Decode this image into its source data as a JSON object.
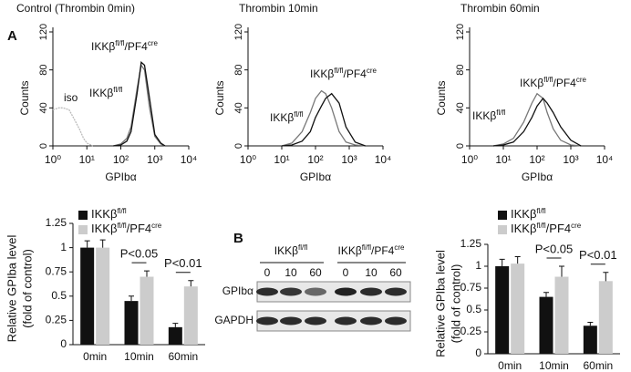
{
  "panel_labels": [
    "A",
    "B"
  ],
  "chart_data": [
    {
      "type": "histogram-line",
      "title": "Control (Thrombin 0min)",
      "x_label": "GPIbα",
      "y_label": "Counts",
      "log_x": true,
      "xlim": [
        1,
        10000
      ],
      "xticks": [
        {
          "value": 1,
          "label": "10⁰"
        },
        {
          "value": 10,
          "label": "10¹"
        },
        {
          "value": 100,
          "label": "10²"
        },
        {
          "value": 1000,
          "label": "10³"
        },
        {
          "value": 10000,
          "label": "10⁴"
        }
      ],
      "ylim": [
        0,
        120
      ],
      "yticks": [
        0,
        40,
        80,
        120
      ],
      "series": [
        {
          "name": [
            {
              "t": "iso"
            }
          ],
          "color": "#bbbbbb",
          "x": [
            1,
            1.5,
            2,
            3,
            4,
            6,
            8,
            10,
            15
          ],
          "values": [
            38,
            40,
            40,
            38,
            30,
            18,
            8,
            3,
            0
          ]
        },
        {
          "name": [
            {
              "t": "IKKβ"
            },
            {
              "t": "fl/fl",
              "sup": true
            }
          ],
          "color": "#777777",
          "x": [
            60,
            100,
            150,
            200,
            300,
            400,
            500,
            700,
            1000,
            1500,
            2000
          ],
          "values": [
            0,
            2,
            8,
            20,
            60,
            85,
            80,
            40,
            10,
            2,
            0
          ]
        },
        {
          "name": [
            {
              "t": "IKKβ"
            },
            {
              "t": "fl/fl",
              "sup": true
            },
            {
              "t": "/PF4"
            },
            {
              "t": "cre",
              "sup": true
            }
          ],
          "color": "#111111",
          "x": [
            60,
            100,
            150,
            200,
            300,
            400,
            500,
            700,
            1000,
            1500,
            2000
          ],
          "values": [
            0,
            1,
            5,
            15,
            55,
            88,
            85,
            50,
            12,
            3,
            0
          ]
        }
      ]
    },
    {
      "type": "histogram-line",
      "title": "Thrombin 10min",
      "x_label": "GPIbα",
      "y_label": "Counts",
      "log_x": true,
      "xlim": [
        1,
        10000
      ],
      "xticks": [
        {
          "value": 1,
          "label": "10⁰"
        },
        {
          "value": 10,
          "label": "10¹"
        },
        {
          "value": 100,
          "label": "10²"
        },
        {
          "value": 1000,
          "label": "10³"
        },
        {
          "value": 10000,
          "label": "10⁴"
        }
      ],
      "ylim": [
        0,
        120
      ],
      "yticks": [
        0,
        40,
        80,
        120
      ],
      "series": [
        {
          "name": [
            {
              "t": "IKKβ"
            },
            {
              "t": "fl/fl",
              "sup": true
            }
          ],
          "color": "#777777",
          "x": [
            10,
            20,
            40,
            70,
            100,
            150,
            200,
            300,
            500,
            800,
            1500,
            3000
          ],
          "values": [
            0,
            3,
            15,
            35,
            50,
            58,
            55,
            40,
            15,
            4,
            1,
            0
          ]
        },
        {
          "name": [
            {
              "t": "IKKβ"
            },
            {
              "t": "fl/fl",
              "sup": true
            },
            {
              "t": "/PF4"
            },
            {
              "t": "cre",
              "sup": true
            }
          ],
          "color": "#111111",
          "x": [
            10,
            20,
            40,
            70,
            100,
            150,
            200,
            300,
            500,
            800,
            1500,
            3000
          ],
          "values": [
            0,
            1,
            5,
            15,
            30,
            42,
            50,
            55,
            45,
            20,
            4,
            0
          ]
        }
      ]
    },
    {
      "type": "histogram-line",
      "title": "Thrombin 60min",
      "x_label": "GPIbα",
      "y_label": "Counts",
      "log_x": true,
      "xlim": [
        1,
        10000
      ],
      "xticks": [
        {
          "value": 1,
          "label": "10⁰"
        },
        {
          "value": 10,
          "label": "10¹"
        },
        {
          "value": 100,
          "label": "10²"
        },
        {
          "value": 1000,
          "label": "10³"
        },
        {
          "value": 10000,
          "label": "10⁴"
        }
      ],
      "ylim": [
        0,
        120
      ],
      "yticks": [
        0,
        40,
        80,
        120
      ],
      "series": [
        {
          "name": [
            {
              "t": "IKKβ"
            },
            {
              "t": "fl/fl",
              "sup": true
            }
          ],
          "color": "#777777",
          "x": [
            5,
            10,
            20,
            40,
            70,
            100,
            150,
            200,
            300,
            500,
            1000,
            2000
          ],
          "values": [
            0,
            2,
            8,
            25,
            45,
            55,
            50,
            35,
            18,
            6,
            1,
            0
          ]
        },
        {
          "name": [
            {
              "t": "IKKβ"
            },
            {
              "t": "fl/fl",
              "sup": true
            },
            {
              "t": "/PF4"
            },
            {
              "t": "cre",
              "sup": true
            }
          ],
          "color": "#111111",
          "x": [
            5,
            10,
            20,
            40,
            70,
            100,
            150,
            200,
            300,
            500,
            1000,
            2000
          ],
          "values": [
            0,
            1,
            4,
            15,
            30,
            42,
            50,
            45,
            35,
            20,
            6,
            0
          ]
        }
      ]
    },
    {
      "type": "bar",
      "y_label": [
        "Relative GPIba level",
        "(fold of control)"
      ],
      "categories": [
        "0min",
        "10min",
        "60min"
      ],
      "ylim": [
        0,
        1.25
      ],
      "yticks": [
        0,
        0.25,
        0.5,
        0.75,
        1,
        1.25
      ],
      "annotations": [
        "P<0.05",
        "P<0.01"
      ],
      "series": [
        {
          "name": [
            {
              "t": "IKKβ"
            },
            {
              "t": "fl/fl",
              "sup": true
            }
          ],
          "color": "#111111",
          "values": [
            1.0,
            0.45,
            0.18
          ],
          "errors": [
            0.07,
            0.05,
            0.04
          ]
        },
        {
          "name": [
            {
              "t": "IKKβ"
            },
            {
              "t": "fl/fl",
              "sup": true
            },
            {
              "t": "/PF4"
            },
            {
              "t": "cre",
              "sup": true
            }
          ],
          "color": "#cccccc",
          "values": [
            1.0,
            0.7,
            0.6
          ],
          "errors": [
            0.08,
            0.06,
            0.06
          ]
        }
      ]
    },
    {
      "type": "bar",
      "y_label": [
        "Relative GPIba level",
        "(fold of control)"
      ],
      "categories": [
        "0min",
        "10min",
        "60min"
      ],
      "ylim": [
        0,
        1.25
      ],
      "yticks": [
        0,
        0.25,
        0.5,
        0.75,
        1,
        1.25
      ],
      "annotations": [
        "P<0.05",
        "P<0.01"
      ],
      "series": [
        {
          "name": [
            {
              "t": "IKKβ"
            },
            {
              "t": "fl/fl",
              "sup": true
            }
          ],
          "color": "#111111",
          "values": [
            1.0,
            0.65,
            0.32
          ],
          "errors": [
            0.08,
            0.05,
            0.04
          ]
        },
        {
          "name": [
            {
              "t": "IKKβ"
            },
            {
              "t": "fl/fl",
              "sup": true
            },
            {
              "t": "/PF4"
            },
            {
              "t": "cre",
              "sup": true
            }
          ],
          "color": "#cccccc",
          "values": [
            1.03,
            0.88,
            0.83
          ],
          "errors": [
            0.08,
            0.12,
            0.1
          ]
        }
      ]
    }
  ],
  "blot": {
    "groups": [
      [
        {
          "t": "IKKβ"
        },
        {
          "t": "fl/fl",
          "sup": true
        }
      ],
      [
        {
          "t": "IKKβ"
        },
        {
          "t": "fl/fl",
          "sup": true
        },
        {
          "t": "/PF4"
        },
        {
          "t": "cre",
          "sup": true
        }
      ]
    ],
    "lanes": [
      "0",
      "10",
      "60",
      "0",
      "10",
      "60"
    ],
    "rows": [
      "GPIbα",
      "GAPDH"
    ]
  }
}
